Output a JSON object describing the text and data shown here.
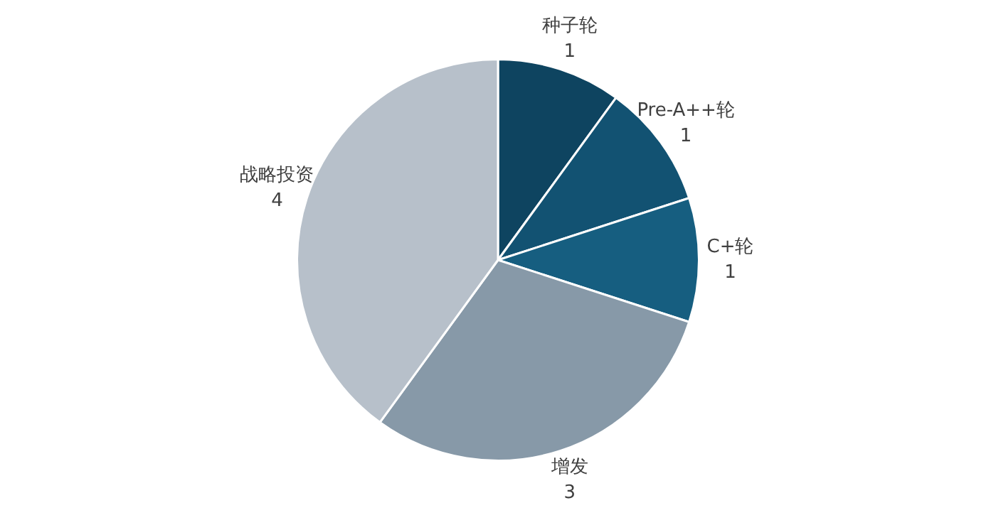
{
  "chart_data": {
    "type": "pie",
    "categories": [
      "种子轮",
      "Pre-A++轮",
      "C+轮",
      "增发",
      "战略投资"
    ],
    "values": [
      1,
      1,
      1,
      3,
      4
    ],
    "colors": [
      "#0e4460",
      "#125272",
      "#165e80",
      "#8799a8",
      "#b7c0ca"
    ],
    "data_labels": true,
    "legend": false
  }
}
